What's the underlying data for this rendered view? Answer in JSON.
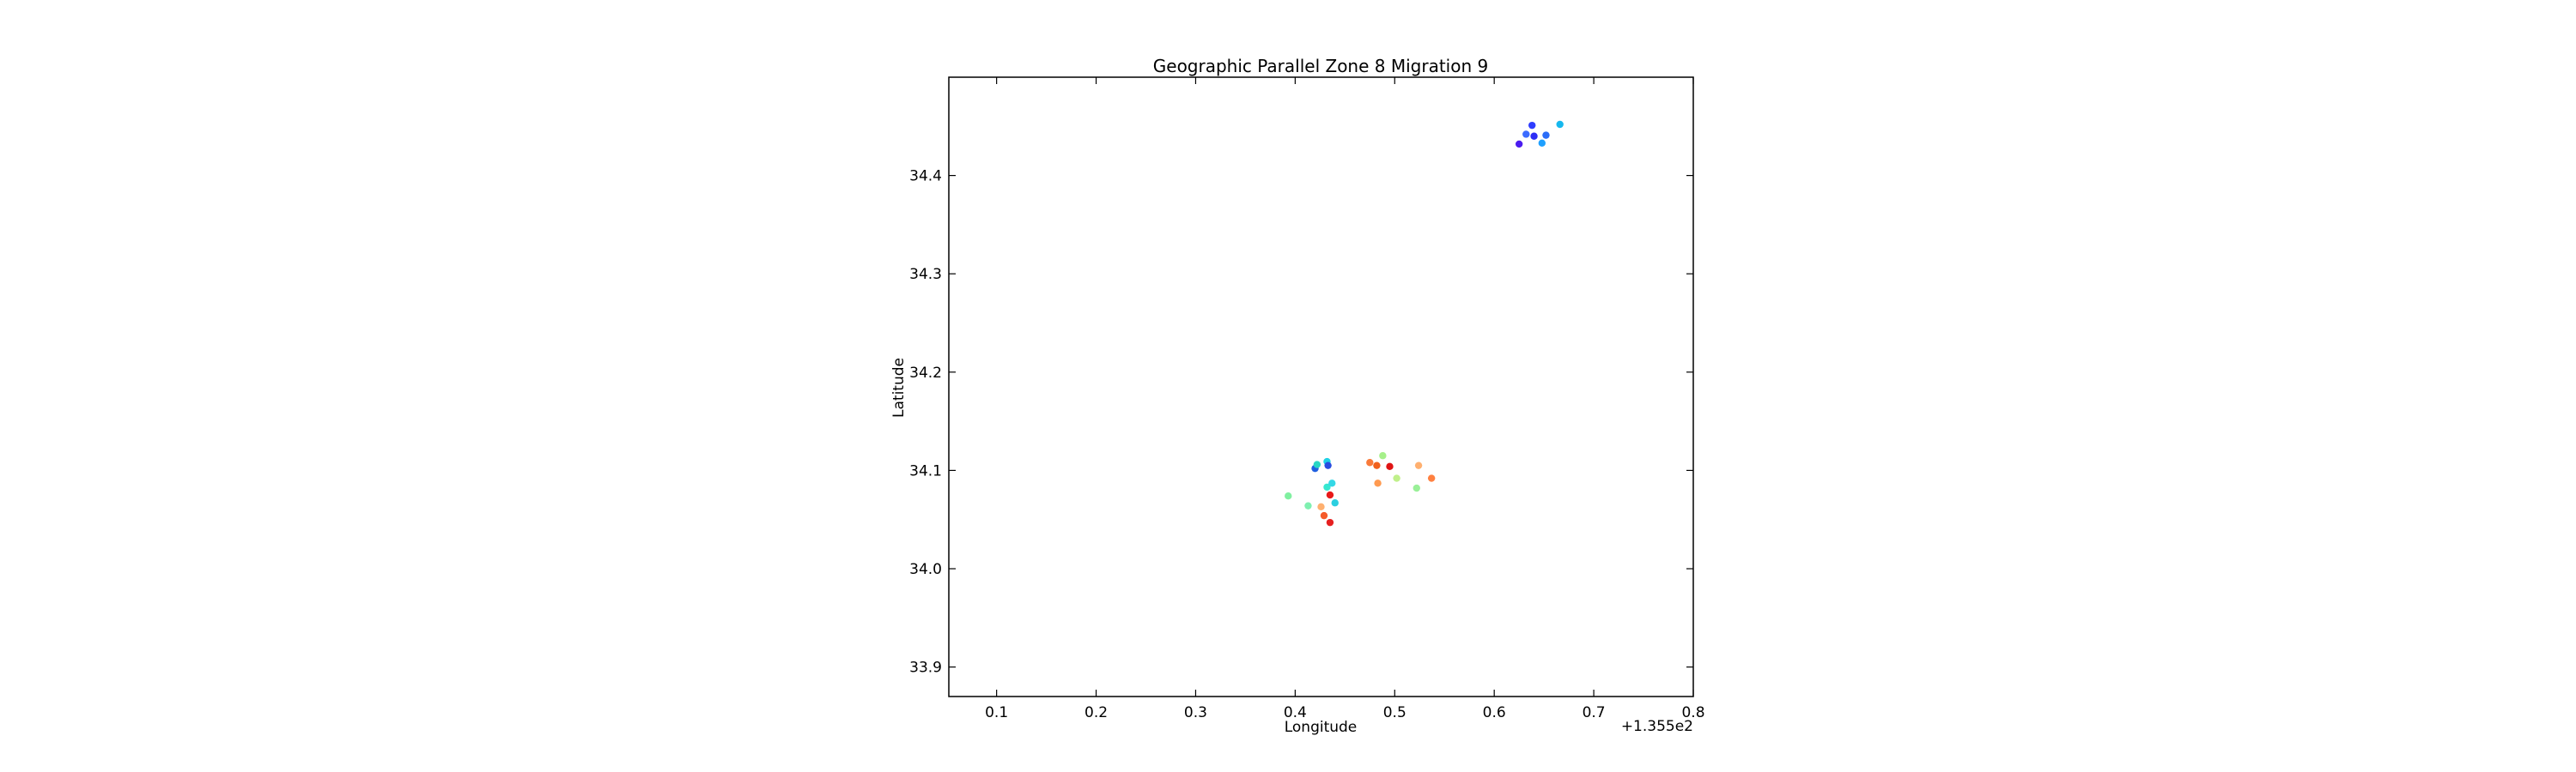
{
  "chart_data": {
    "type": "scatter",
    "title": "Geographic Parallel Zone 8 Migration 9",
    "xlabel": "Longitude",
    "ylabel": "Latitude",
    "x_offset_label": "+1.355e2",
    "x_offset": 135.5,
    "xlim": [
      0.052,
      0.8
    ],
    "ylim": [
      33.87,
      34.5
    ],
    "xticks": [
      0.1,
      0.2,
      0.3,
      0.4,
      0.5,
      0.6,
      0.7,
      0.8
    ],
    "xtick_labels": [
      "0.1",
      "0.2",
      "0.3",
      "0.4",
      "0.5",
      "0.6",
      "0.7",
      "0.8"
    ],
    "yticks": [
      33.9,
      34.0,
      34.1,
      34.2,
      34.3,
      34.4
    ],
    "ytick_labels": [
      "33.9",
      "34.0",
      "34.1",
      "34.2",
      "34.3",
      "34.4"
    ],
    "grid": false,
    "colormap": "jet",
    "points": [
      {
        "x": 0.625,
        "y": 34.432,
        "color": "#4b1cf0"
      },
      {
        "x": 0.632,
        "y": 34.442,
        "color": "#3b6bff"
      },
      {
        "x": 0.638,
        "y": 34.451,
        "color": "#2f3dff"
      },
      {
        "x": 0.64,
        "y": 34.44,
        "color": "#2d2df5"
      },
      {
        "x": 0.648,
        "y": 34.433,
        "color": "#1fa0ff"
      },
      {
        "x": 0.652,
        "y": 34.441,
        "color": "#2a6cf8"
      },
      {
        "x": 0.666,
        "y": 34.452,
        "color": "#16b8ee"
      },
      {
        "x": 0.42,
        "y": 34.102,
        "color": "#1f5fe0"
      },
      {
        "x": 0.422,
        "y": 34.106,
        "color": "#28d6c4"
      },
      {
        "x": 0.432,
        "y": 34.109,
        "color": "#1fd1e6"
      },
      {
        "x": 0.433,
        "y": 34.105,
        "color": "#2a4de0"
      },
      {
        "x": 0.393,
        "y": 34.074,
        "color": "#80f0a0"
      },
      {
        "x": 0.413,
        "y": 34.064,
        "color": "#7ff0b0"
      },
      {
        "x": 0.432,
        "y": 34.083,
        "color": "#36e8d0"
      },
      {
        "x": 0.437,
        "y": 34.087,
        "color": "#34d8e6"
      },
      {
        "x": 0.44,
        "y": 34.067,
        "color": "#2bcfe0"
      },
      {
        "x": 0.435,
        "y": 34.075,
        "color": "#e81a1a"
      },
      {
        "x": 0.426,
        "y": 34.063,
        "color": "#ffb070"
      },
      {
        "x": 0.429,
        "y": 34.054,
        "color": "#f55a2a"
      },
      {
        "x": 0.435,
        "y": 34.047,
        "color": "#e62020"
      },
      {
        "x": 0.475,
        "y": 34.108,
        "color": "#f97a3a"
      },
      {
        "x": 0.482,
        "y": 34.105,
        "color": "#f1601c"
      },
      {
        "x": 0.488,
        "y": 34.115,
        "color": "#a6f08a"
      },
      {
        "x": 0.495,
        "y": 34.104,
        "color": "#e01414"
      },
      {
        "x": 0.483,
        "y": 34.087,
        "color": "#ff9a50"
      },
      {
        "x": 0.502,
        "y": 34.092,
        "color": "#c0f08a"
      },
      {
        "x": 0.522,
        "y": 34.082,
        "color": "#9af098"
      },
      {
        "x": 0.524,
        "y": 34.105,
        "color": "#ffb070"
      },
      {
        "x": 0.537,
        "y": 34.092,
        "color": "#ff8040"
      }
    ]
  }
}
